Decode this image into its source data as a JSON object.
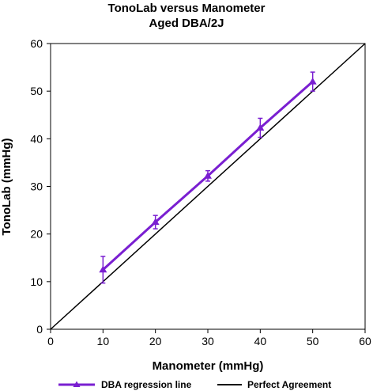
{
  "chart_data": {
    "type": "line",
    "title": [
      "TonoLab versus Manometer",
      "Aged DBA/2J"
    ],
    "xlabel": "Manometer (mmHg)",
    "ylabel": "TonoLab (mmHg)",
    "xlim": [
      0,
      60
    ],
    "ylim": [
      0,
      60
    ],
    "xticks": [
      "0",
      "10",
      "20",
      "30",
      "40",
      "50",
      "60"
    ],
    "yticks": [
      "0",
      "10",
      "20",
      "30",
      "40",
      "50",
      "60"
    ],
    "grid": false,
    "legend_position": "bottom",
    "series": [
      {
        "name": "DBA regression line",
        "color": "#7a1fd1",
        "marker": "triangle",
        "x": [
          10,
          20,
          30,
          40,
          50
        ],
        "y": [
          12.5,
          22.5,
          32.2,
          42.3,
          52.0
        ],
        "error": [
          2.8,
          1.4,
          1.1,
          2.0,
          2.0
        ]
      },
      {
        "name": "Perfect Agreement",
        "color": "#000000",
        "x": [
          0,
          60
        ],
        "y": [
          0,
          60
        ]
      }
    ]
  }
}
